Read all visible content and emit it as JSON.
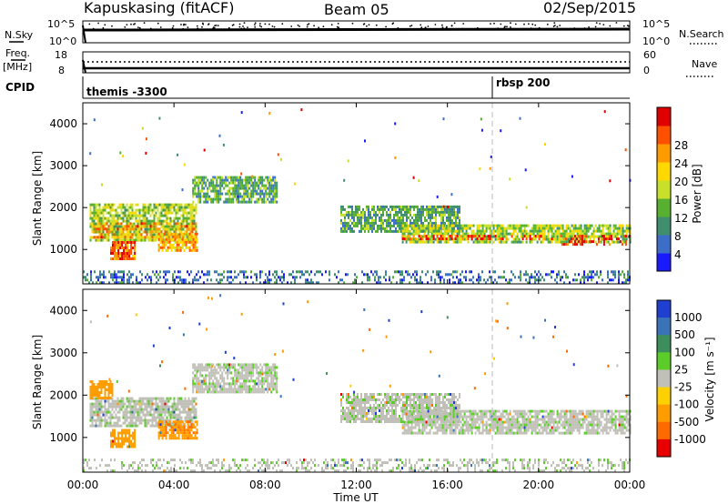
{
  "header": {
    "station": "Kapuskasing (fitACF)",
    "beam": "Beam 05",
    "date": "02/Sep/2015"
  },
  "top_panels": {
    "nsky_label": "N.Sky",
    "nsearch_label": "N.Search",
    "noise_ticks_left": [
      "10^5",
      "10^0"
    ],
    "noise_ticks_right": [
      "10^5",
      "10^0"
    ],
    "freq_label": "Freq.",
    "freq_unit": "[MHz]",
    "freq_ticks": [
      "18",
      "8"
    ],
    "nave_label": "Nave",
    "nave_ticks": [
      "60",
      "0"
    ],
    "cpid_label": "CPID",
    "cpid_entries": [
      {
        "text": "themis -3300",
        "time_hours": 0
      },
      {
        "text": "rbsp 200",
        "time_hours": 18
      }
    ]
  },
  "axes": {
    "ylabel": "Slant Range [km]",
    "xlabel": "Time UT",
    "x_ticks": [
      "00:00",
      "04:00",
      "08:00",
      "12:00",
      "16:00",
      "20:00",
      "00:00"
    ],
    "y_ticks": [
      "1000",
      "2000",
      "3000",
      "4000"
    ]
  },
  "colorbars": {
    "power": {
      "label": "Power [dB]",
      "ticks": [
        "4",
        "8",
        "12",
        "16",
        "20",
        "24",
        "28"
      ],
      "colors": [
        "#1a1aff",
        "#3c6ec8",
        "#3f8f6e",
        "#58b030",
        "#c9e02a",
        "#ffd800",
        "#ff9a00",
        "#ff5000",
        "#e00000"
      ]
    },
    "velocity": {
      "label": "Velocity [m s⁻¹]",
      "ticks": [
        "1000",
        "500",
        "100",
        "25",
        "-25",
        "-100",
        "-500",
        "-1000"
      ],
      "colors": [
        "#1f3fd0",
        "#3b74b6",
        "#3c8f5a",
        "#5ccc28",
        "#c0c0b8",
        "#ffd000",
        "#ff9c00",
        "#ff6a00",
        "#e80000"
      ]
    }
  },
  "chart_data": {
    "type": "heatmap",
    "title": "Kapuskasing (fitACF) Beam 05 02/Sep/2015",
    "xlabel": "Time UT",
    "ylabel": "Slant Range [km]",
    "xlim": [
      0,
      24
    ],
    "ylim": [
      180,
      4500
    ],
    "grid": false,
    "panels": [
      {
        "name": "Power [dB]",
        "value_range": [
          0,
          30
        ],
        "regions": [
          {
            "t": [
              0.3,
              5.0
            ],
            "r": [
              1200,
              2100
            ],
            "value": 14
          },
          {
            "t": [
              0.3,
              5.0
            ],
            "r": [
              1300,
              1650
            ],
            "value": 22
          },
          {
            "t": [
              1.2,
              2.3
            ],
            "r": [
              750,
              1200
            ],
            "value": 24
          },
          {
            "t": [
              3.3,
              5.0
            ],
            "r": [
              1000,
              1400
            ],
            "value": 20
          },
          {
            "t": [
              4.8,
              8.5
            ],
            "r": [
              2100,
              2750
            ],
            "value": 10
          },
          {
            "t": [
              11.3,
              16.5
            ],
            "r": [
              1400,
              2050
            ],
            "value": 10
          },
          {
            "t": [
              14.0,
              24.0
            ],
            "r": [
              1200,
              1600
            ],
            "value": 14
          },
          {
            "t": [
              14.0,
              21.0
            ],
            "r": [
              1250,
              1350
            ],
            "value": 26
          },
          {
            "t": [
              21.0,
              24.0
            ],
            "r": [
              1100,
              1350
            ],
            "value": 27
          },
          {
            "t": [
              0.0,
              24.0
            ],
            "r": [
              200,
              500
            ],
            "value": 6
          }
        ]
      },
      {
        "name": "Velocity",
        "value_range": [
          -1000,
          1000
        ],
        "regions": [
          {
            "t": [
              0.3,
              5.0
            ],
            "r": [
              1250,
              1950
            ],
            "value": 0
          },
          {
            "t": [
              0.3,
              1.3
            ],
            "r": [
              1900,
              2350
            ],
            "value": -300
          },
          {
            "t": [
              1.2,
              2.3
            ],
            "r": [
              750,
              1200
            ],
            "value": -300
          },
          {
            "t": [
              3.3,
              5.0
            ],
            "r": [
              1000,
              1400
            ],
            "value": -400
          },
          {
            "t": [
              4.8,
              8.5
            ],
            "r": [
              2100,
              2750
            ],
            "value": 0
          },
          {
            "t": [
              11.3,
              16.5
            ],
            "r": [
              1400,
              2050
            ],
            "value": 0
          },
          {
            "t": [
              14.0,
              24.0
            ],
            "r": [
              1100,
              1650
            ],
            "value": 0
          },
          {
            "t": [
              0.0,
              24.0
            ],
            "r": [
              200,
              500
            ],
            "value": 0
          }
        ]
      }
    ]
  }
}
